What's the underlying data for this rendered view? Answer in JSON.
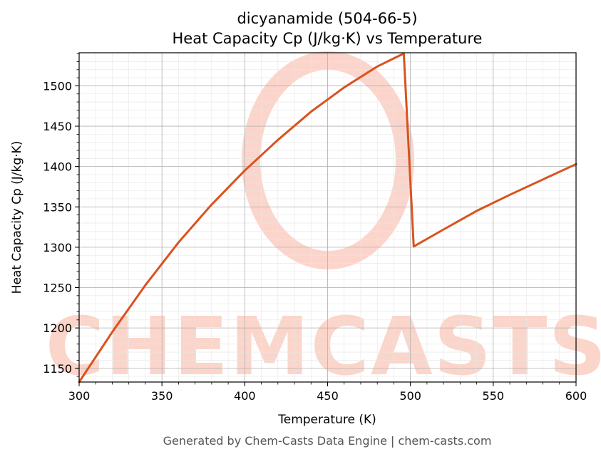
{
  "chart_data": {
    "type": "line",
    "title": "dicyanamide (504-66-5)",
    "subtitle": "Heat Capacity Cp (J/kg·K) vs Temperature",
    "xlabel": "Temperature (K)",
    "ylabel": "Heat Capacity Cp (J/kg·K)",
    "xlim": [
      300,
      600
    ],
    "ylim": [
      1133,
      1541
    ],
    "xticks": [
      300,
      350,
      400,
      450,
      500,
      550,
      600
    ],
    "yticks": [
      1150,
      1200,
      1250,
      1300,
      1350,
      1400,
      1450,
      1500
    ],
    "grid": true,
    "legend": "none",
    "series": [
      {
        "color": "#d9531e",
        "x": [
          300,
          320,
          340,
          360,
          380,
          400,
          420,
          440,
          460,
          480,
          490,
          496,
          502,
          520,
          540,
          560,
          580,
          600
        ],
        "y": [
          1133,
          1195,
          1253,
          1306,
          1353,
          1395,
          1433,
          1468,
          1498,
          1524,
          1534,
          1540,
          1301,
          1322,
          1345,
          1365,
          1384,
          1403
        ]
      }
    ]
  },
  "watermark": {
    "text": "CHEMCASTS",
    "color": "#fbd3c8"
  },
  "footer": "Generated by Chem-Casts Data Engine | chem-casts.com"
}
